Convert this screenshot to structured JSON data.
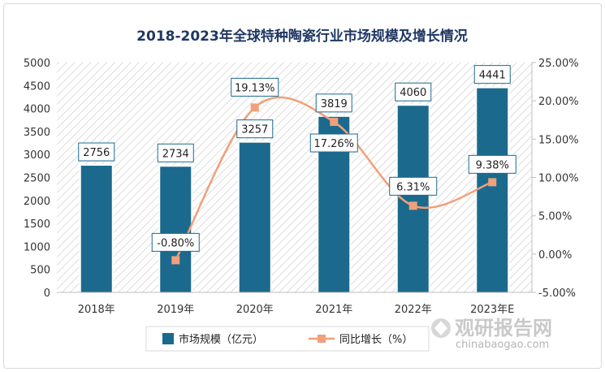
{
  "chart_data": {
    "type": "bar+line",
    "title": "2018-2023年全球特种陶瓷行业市场规模及增长情况",
    "categories": [
      "2018年",
      "2019年",
      "2020年",
      "2021年",
      "2022年",
      "2023年E"
    ],
    "series": [
      {
        "name": "市场规模（亿元）",
        "type": "bar",
        "axis": "left",
        "color": "#1b6a8d",
        "values": [
          2756,
          2734,
          3257,
          3819,
          4060,
          4441
        ],
        "labels": [
          "2756",
          "2734",
          "3257",
          "3819",
          "4060",
          "4441"
        ]
      },
      {
        "name": "同比增长（%）",
        "type": "line",
        "axis": "right",
        "color": "#f0a07a",
        "values": [
          null,
          -0.8,
          19.13,
          17.26,
          6.31,
          9.38
        ],
        "labels": [
          "",
          "-0.80%",
          "19.13%",
          "17.26%",
          "6.31%",
          "9.38%"
        ]
      }
    ],
    "y_left": {
      "min": 0,
      "max": 5000,
      "step": 500,
      "ticks": [
        "0",
        "500",
        "1000",
        "1500",
        "2000",
        "2500",
        "3000",
        "3500",
        "4000",
        "4500",
        "5000"
      ]
    },
    "y_right": {
      "min": -5,
      "max": 25,
      "step": 5,
      "ticks": [
        "-5.00%",
        "0.00%",
        "5.00%",
        "10.00%",
        "15.00%",
        "20.00%",
        "25.00%"
      ]
    },
    "legend_position": "bottom",
    "grid": false
  },
  "watermark": {
    "text_cn": "观研报告网",
    "text_en": "chinabaogao.com"
  }
}
